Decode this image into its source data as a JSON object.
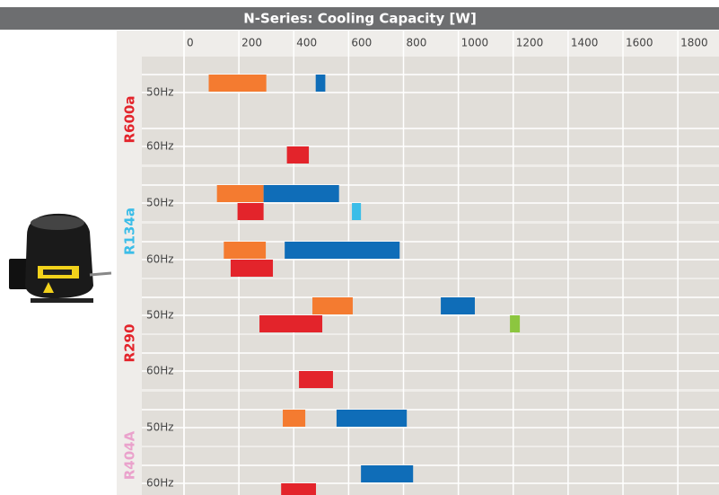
{
  "chart_data": {
    "type": "range-bar",
    "title": "N-Series: Cooling Capacity [W]",
    "xlim": [
      0,
      1950
    ],
    "xticks": [
      0,
      200,
      400,
      600,
      800,
      1000,
      1200,
      1400,
      1600,
      1800
    ],
    "grid": true,
    "groups": [
      {
        "name": "R600a",
        "color": "#e3242b",
        "rows": [
          {
            "label": "50Hz",
            "lanes": [
              [
                {
                  "start": 90,
                  "end": 300,
                  "color": "#f47b30"
                },
                {
                  "start": 480,
                  "end": 515,
                  "color": "#0f6db8"
                }
              ],
              []
            ]
          },
          {
            "label": "60Hz",
            "lanes": [
              [],
              [
                {
                  "start": 375,
                  "end": 455,
                  "color": "#e3242b"
                }
              ]
            ]
          }
        ]
      },
      {
        "name": "R134a",
        "color": "#3bbde8",
        "rows": [
          {
            "label": "50Hz",
            "lanes": [
              [
                {
                  "start": 120,
                  "end": 290,
                  "color": "#f47b30"
                },
                {
                  "start": 290,
                  "end": 565,
                  "color": "#0f6db8"
                }
              ],
              [
                {
                  "start": 195,
                  "end": 290,
                  "color": "#e3242b"
                },
                {
                  "start": 612,
                  "end": 645,
                  "color": "#3bbde8"
                }
              ]
            ]
          },
          {
            "label": "60Hz",
            "lanes": [
              [
                {
                  "start": 145,
                  "end": 298,
                  "color": "#f47b30"
                },
                {
                  "start": 367,
                  "end": 786,
                  "color": "#0f6db8"
                }
              ],
              [
                {
                  "start": 170,
                  "end": 324,
                  "color": "#e3242b"
                }
              ]
            ]
          }
        ]
      },
      {
        "name": "R290",
        "color": "#e3242b",
        "rows": [
          {
            "label": "50Hz",
            "lanes": [
              [
                {
                  "start": 468,
                  "end": 615,
                  "color": "#f47b30"
                },
                {
                  "start": 936,
                  "end": 1060,
                  "color": "#0f6db8"
                }
              ],
              [
                {
                  "start": 275,
                  "end": 504,
                  "color": "#e3242b"
                },
                {
                  "start": 1188,
                  "end": 1224,
                  "color": "#8cc63f"
                }
              ]
            ]
          },
          {
            "label": "60Hz",
            "lanes": [
              [],
              [
                {
                  "start": 419,
                  "end": 543,
                  "color": "#e3242b"
                }
              ]
            ]
          }
        ]
      },
      {
        "name": "R404A",
        "color": "#eaa2cc",
        "rows": [
          {
            "label": "50Hz",
            "lanes": [
              [
                {
                  "start": 360,
                  "end": 442,
                  "color": "#f47b30"
                },
                {
                  "start": 556,
                  "end": 812,
                  "color": "#0f6db8"
                }
              ],
              []
            ]
          },
          {
            "label": "60Hz",
            "lanes": [
              [
                {
                  "start": 645,
                  "end": 835,
                  "color": "#0f6db8"
                }
              ],
              [
                {
                  "start": 354,
                  "end": 481,
                  "color": "#e3242b"
                }
              ]
            ]
          }
        ]
      }
    ]
  }
}
